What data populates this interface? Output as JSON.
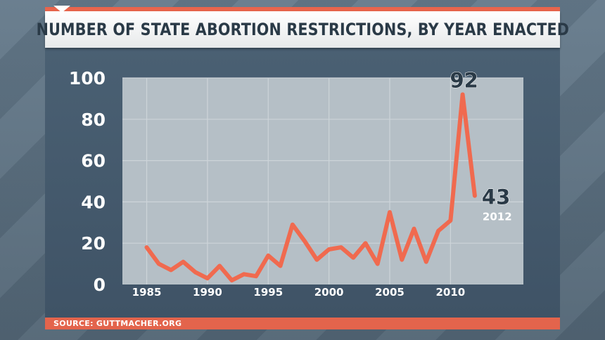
{
  "header": {
    "title": "NUMBER OF STATE ABORTION RESTRICTIONS, BY YEAR ENACTED"
  },
  "footer": {
    "source": "SOURCE: GUTTMACHER.ORG"
  },
  "colors": {
    "accent": "#e8644c",
    "line": "#f06a4f",
    "plot_bg": "#b5bfc6",
    "grid": "#cdd4d9"
  },
  "chart_data": {
    "type": "line",
    "title": "NUMBER OF STATE ABORTION RESTRICTIONS, BY YEAR ENACTED",
    "xlabel": "",
    "ylabel": "",
    "x": [
      1985,
      1986,
      1987,
      1988,
      1989,
      1990,
      1991,
      1992,
      1993,
      1994,
      1995,
      1996,
      1997,
      1998,
      1999,
      2000,
      2001,
      2002,
      2003,
      2004,
      2005,
      2006,
      2007,
      2008,
      2009,
      2010,
      2011,
      2012
    ],
    "values": [
      18,
      10,
      7,
      11,
      6,
      3,
      9,
      2,
      5,
      4,
      14,
      9,
      29,
      21,
      12,
      17,
      18,
      13,
      20,
      10,
      35,
      12,
      27,
      11,
      26,
      31,
      92,
      43
    ],
    "xlim": [
      1983,
      2016
    ],
    "ylim": [
      0,
      100
    ],
    "x_ticks": [
      1985,
      1990,
      1995,
      2000,
      2005,
      2010
    ],
    "y_ticks": [
      0,
      20,
      40,
      60,
      80,
      100
    ],
    "grid": true,
    "annotations": [
      {
        "text": "92",
        "x": 2011,
        "y": 92
      },
      {
        "text": "43",
        "x": 2012,
        "y": 43
      },
      {
        "text": "2012",
        "x": 2012,
        "y": 43
      }
    ]
  }
}
